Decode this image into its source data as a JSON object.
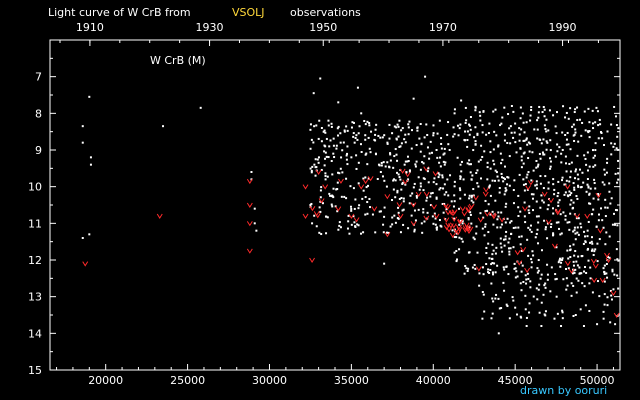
{
  "title": {
    "prefix": "Light curve of W CrB from",
    "source": "VSOLJ",
    "suffix": "observations"
  },
  "credit": "drawn by ooruri",
  "colors": {
    "background": "#000000",
    "axes": "#ffffff",
    "visual_points": "#ffffff",
    "fainter_than_marks": "#ff2a2a",
    "source_highlight": "#ffd83a",
    "credit": "#38c8ff"
  },
  "chart_data": {
    "type": "scatter",
    "title": "Light curve of W CrB from VSOLJ observations",
    "annotation": "W CrB (M)",
    "xlabel": "",
    "ylabel": "",
    "xlim": [
      16600,
      51400
    ],
    "ylim": [
      15,
      6
    ],
    "y_inverted": true,
    "x_ticks": [
      20000,
      25000,
      30000,
      35000,
      40000,
      45000,
      50000
    ],
    "x_tick_labels": [
      "20000",
      "25000",
      "30000",
      "35000",
      "40000",
      "45000",
      "50000"
    ],
    "top_year_ticks": [
      {
        "jd": 19036,
        "label": "1910"
      },
      {
        "jd": 26341,
        "label": "1930"
      },
      {
        "jd": 33282,
        "label": "1950"
      },
      {
        "jd": 40588,
        "label": "1970"
      },
      {
        "jd": 47893,
        "label": "1990"
      }
    ],
    "y_ticks": [
      7,
      8,
      9,
      10,
      11,
      12,
      13,
      14,
      15
    ],
    "y_tick_labels": [
      "7",
      "8",
      "9",
      "10",
      "11",
      "12",
      "13",
      "14",
      "15"
    ],
    "grid": false,
    "series": [
      {
        "marker": "dot",
        "color": "#ffffff",
        "points": [
          [
            18600,
            8.35
          ],
          [
            18600,
            8.8
          ],
          [
            18600,
            11.4
          ],
          [
            19000,
            7.55
          ],
          [
            19100,
            9.2
          ],
          [
            19100,
            9.4
          ],
          [
            19000,
            11.3
          ],
          [
            23500,
            8.35
          ],
          [
            25800,
            7.85
          ],
          [
            28900,
            9.6
          ],
          [
            28900,
            9.8
          ],
          [
            29100,
            10.6
          ],
          [
            29100,
            11.0
          ],
          [
            29200,
            11.2
          ],
          [
            32500,
            8.45
          ],
          [
            32500,
            10.5
          ],
          [
            32600,
            11.0
          ],
          [
            32700,
            7.45
          ],
          [
            33100,
            7.05
          ],
          [
            33000,
            9.35
          ],
          [
            33200,
            8.4
          ],
          [
            33400,
            8.9
          ],
          [
            33600,
            8.2
          ],
          [
            33800,
            9.3
          ],
          [
            34200,
            7.7
          ],
          [
            34600,
            8.5
          ],
          [
            35000,
            9.2
          ],
          [
            35200,
            8.8
          ],
          [
            35400,
            7.3
          ],
          [
            35600,
            8.0
          ],
          [
            36200,
            8.5
          ],
          [
            36500,
            9.1
          ],
          [
            36800,
            9.6
          ],
          [
            37000,
            12.1
          ],
          [
            37200,
            8.8
          ],
          [
            37600,
            9.8
          ],
          [
            38000,
            8.9
          ],
          [
            38200,
            10.4
          ],
          [
            38500,
            9.3
          ],
          [
            38800,
            7.6
          ],
          [
            39000,
            10.3
          ],
          [
            39300,
            11.0
          ],
          [
            39500,
            7.0
          ],
          [
            39700,
            9.5
          ],
          [
            40000,
            8.6
          ],
          [
            40200,
            9.0
          ],
          [
            40400,
            8.2
          ],
          [
            40700,
            9.4
          ],
          [
            41000,
            9.0
          ],
          [
            41300,
            8.0
          ],
          [
            41300,
            11.8
          ],
          [
            41700,
            7.65
          ],
          [
            41800,
            11.5
          ],
          [
            42100,
            12.3
          ],
          [
            42300,
            8.1
          ],
          [
            42700,
            11.8
          ],
          [
            42800,
            12.7
          ],
          [
            43000,
            13.6
          ],
          [
            43300,
            9.8
          ],
          [
            43600,
            13.05
          ],
          [
            43800,
            7.9
          ],
          [
            44000,
            14.0
          ],
          [
            44300,
            12.2
          ],
          [
            44800,
            7.8
          ],
          [
            45000,
            13.3
          ],
          [
            45200,
            10.8
          ],
          [
            45500,
            12.6
          ],
          [
            45700,
            13.8
          ],
          [
            46000,
            12.2
          ],
          [
            46300,
            9.3
          ],
          [
            46600,
            13.8
          ],
          [
            47000,
            12.4
          ],
          [
            47400,
            13.6
          ],
          [
            47800,
            13.8
          ],
          [
            48200,
            12.7
          ],
          [
            48700,
            13.5
          ],
          [
            49200,
            13.8
          ],
          [
            49600,
            12.5
          ],
          [
            50000,
            13.75
          ],
          [
            50400,
            13.6
          ],
          [
            50800,
            13.7
          ],
          [
            51000,
            12.8
          ],
          [
            51100,
            13.75
          ]
        ]
      },
      {
        "marker": "fainter-than",
        "color": "#ff2a2a",
        "points": [
          [
            18750,
            12.1
          ],
          [
            23300,
            10.8
          ],
          [
            28800,
            9.85
          ],
          [
            28800,
            10.5
          ],
          [
            28800,
            11.0
          ],
          [
            28800,
            11.75
          ],
          [
            32200,
            10.0
          ],
          [
            32200,
            10.8
          ],
          [
            32600,
            12.0
          ],
          [
            33000,
            9.6
          ],
          [
            33400,
            10.0
          ],
          [
            34200,
            10.6
          ],
          [
            35000,
            10.8
          ],
          [
            35600,
            10.0
          ],
          [
            36400,
            10.6
          ],
          [
            37200,
            11.3
          ],
          [
            38000,
            10.8
          ],
          [
            38800,
            11.0
          ],
          [
            39600,
            10.2
          ],
          [
            40200,
            10.8
          ],
          [
            40800,
            10.9
          ],
          [
            41100,
            10.7
          ],
          [
            41400,
            11.2
          ],
          [
            41800,
            10.6
          ],
          [
            42100,
            11.1
          ],
          [
            42600,
            10.3
          ],
          [
            43200,
            10.2
          ],
          [
            44200,
            10.9
          ],
          [
            45600,
            10.6
          ],
          [
            46800,
            10.2
          ],
          [
            47600,
            10.7
          ],
          [
            48200,
            10.0
          ],
          [
            49400,
            10.8
          ],
          [
            50200,
            11.2
          ],
          [
            50700,
            12.0
          ],
          [
            51000,
            12.9
          ],
          [
            51200,
            13.5
          ]
        ]
      }
    ],
    "dense_clouds": [
      {
        "x_range": [
          32500,
          41300
        ],
        "y_range": [
          8.2,
          11.3
        ],
        "count": 400
      },
      {
        "x_range": [
          41300,
          51300
        ],
        "y_range": [
          7.8,
          12.4
        ],
        "count": 700
      },
      {
        "x_range": [
          43000,
          51300
        ],
        "y_range": [
          12.0,
          13.6
        ],
        "count": 120
      }
    ],
    "dense_fainter_than": [
      {
        "x_range": [
          40800,
          42400
        ],
        "y_range": [
          10.5,
          11.4
        ],
        "count": 28
      },
      {
        "x_range": [
          32100,
          40800
        ],
        "y_range": [
          9.5,
          11.0
        ],
        "count": 20
      },
      {
        "x_range": [
          42400,
          51300
        ],
        "y_range": [
          9.8,
          12.6
        ],
        "count": 25
      }
    ]
  }
}
